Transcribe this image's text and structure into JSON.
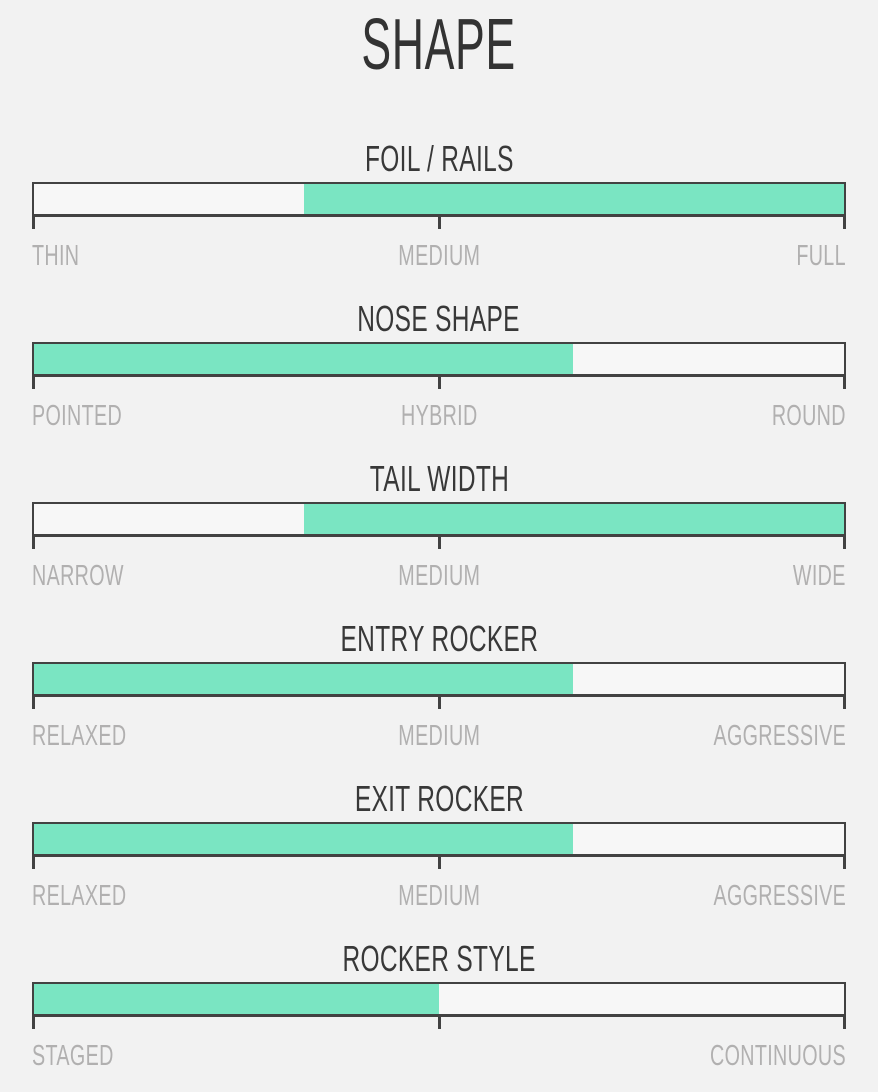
{
  "page_title": "SHAPE",
  "chart_data": {
    "type": "bar",
    "title": "SHAPE",
    "orientation": "horizontal-range-gauges",
    "grid": false,
    "legend": false,
    "axis_ticks_pct": [
      0,
      50,
      100
    ],
    "bars": [
      {
        "label": "FOIL / RAILS",
        "scale": [
          "THIN",
          "MEDIUM",
          "FULL"
        ],
        "fill_start_pct": 33.3,
        "fill_end_pct": 100
      },
      {
        "label": "NOSE SHAPE",
        "scale": [
          "POINTED",
          "HYBRID",
          "ROUND"
        ],
        "fill_start_pct": 0,
        "fill_end_pct": 66.5
      },
      {
        "label": "TAIL WIDTH",
        "scale": [
          "NARROW",
          "MEDIUM",
          "WIDE"
        ],
        "fill_start_pct": 33.3,
        "fill_end_pct": 100
      },
      {
        "label": "ENTRY ROCKER",
        "scale": [
          "RELAXED",
          "MEDIUM",
          "AGGRESSIVE"
        ],
        "fill_start_pct": 0,
        "fill_end_pct": 66.5
      },
      {
        "label": "EXIT ROCKER",
        "scale": [
          "RELAXED",
          "MEDIUM",
          "AGGRESSIVE"
        ],
        "fill_start_pct": 0,
        "fill_end_pct": 66.5
      },
      {
        "label": "ROCKER STYLE",
        "scale": [
          "STAGED",
          "CONTINUOUS"
        ],
        "fill_start_pct": 0,
        "fill_end_pct": 50
      }
    ],
    "colors": {
      "fill": "#7ae5c2",
      "track": "#f7f7f7",
      "border": "#424242",
      "heading_text": "#383838",
      "scale_label_text": "#b1b0b0",
      "background": "#f2f2f2"
    }
  }
}
